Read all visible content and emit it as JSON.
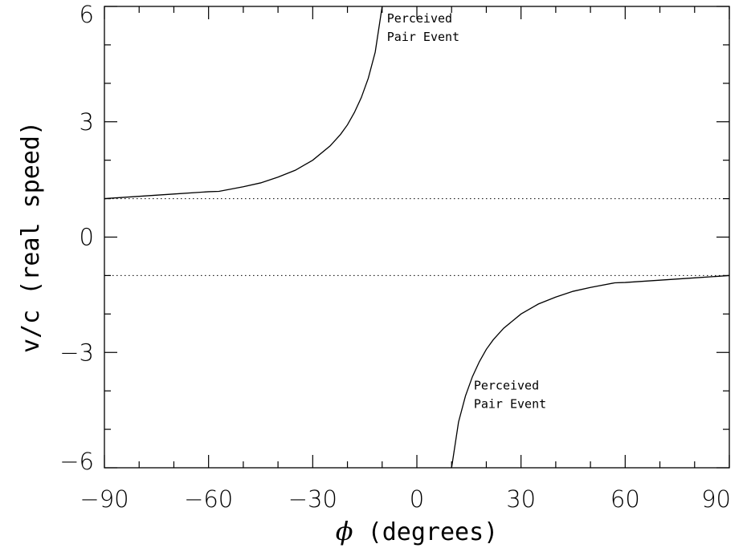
{
  "chart_data": {
    "type": "line",
    "xlabel_symbol": "ϕ",
    "xlabel_text": " (degrees)",
    "ylabel": "v/c (real speed)",
    "xlim": [
      -90,
      90
    ],
    "ylim": [
      -6,
      6
    ],
    "xticks": [
      -90,
      -60,
      -30,
      0,
      30,
      60,
      90
    ],
    "xtick_labels": [
      "−90",
      "−60",
      "−30",
      "0",
      "30",
      "60",
      "90"
    ],
    "yticks": [
      -6,
      -3,
      0,
      3,
      6
    ],
    "ytick_labels": [
      "−6",
      "−3",
      "0",
      "3",
      "6"
    ],
    "series": [
      {
        "x": [
          -90,
          -80,
          -70,
          -60,
          -57,
          -50,
          -45,
          -40,
          -35,
          -30,
          -25,
          -22,
          -20,
          -18,
          -16,
          -14,
          -12,
          -10
        ],
        "y": [
          1.0,
          1.06,
          1.12,
          1.18,
          1.19,
          1.31,
          1.41,
          1.56,
          1.74,
          2.0,
          2.37,
          2.67,
          2.92,
          3.24,
          3.63,
          4.13,
          4.81,
          6.0
        ]
      },
      {
        "x": [
          10,
          12,
          14,
          16,
          18,
          20,
          22,
          25,
          30,
          35,
          40,
          45,
          50,
          57,
          60,
          70,
          80,
          90
        ],
        "y": [
          -6.0,
          -4.81,
          -4.13,
          -3.63,
          -3.24,
          -2.92,
          -2.67,
          -2.37,
          -2.0,
          -1.74,
          -1.56,
          -1.41,
          -1.31,
          -1.19,
          -1.18,
          -1.12,
          -1.06,
          -1.0
        ]
      }
    ],
    "reference_lines": [
      1,
      -1
    ],
    "annotations": [
      {
        "x": -10,
        "y": 5.0,
        "lines": [
          "Perceived",
          "Pair Event"
        ]
      },
      {
        "x": 15,
        "y": -4.55,
        "lines": [
          "Perceived",
          "Pair Event"
        ]
      }
    ]
  }
}
